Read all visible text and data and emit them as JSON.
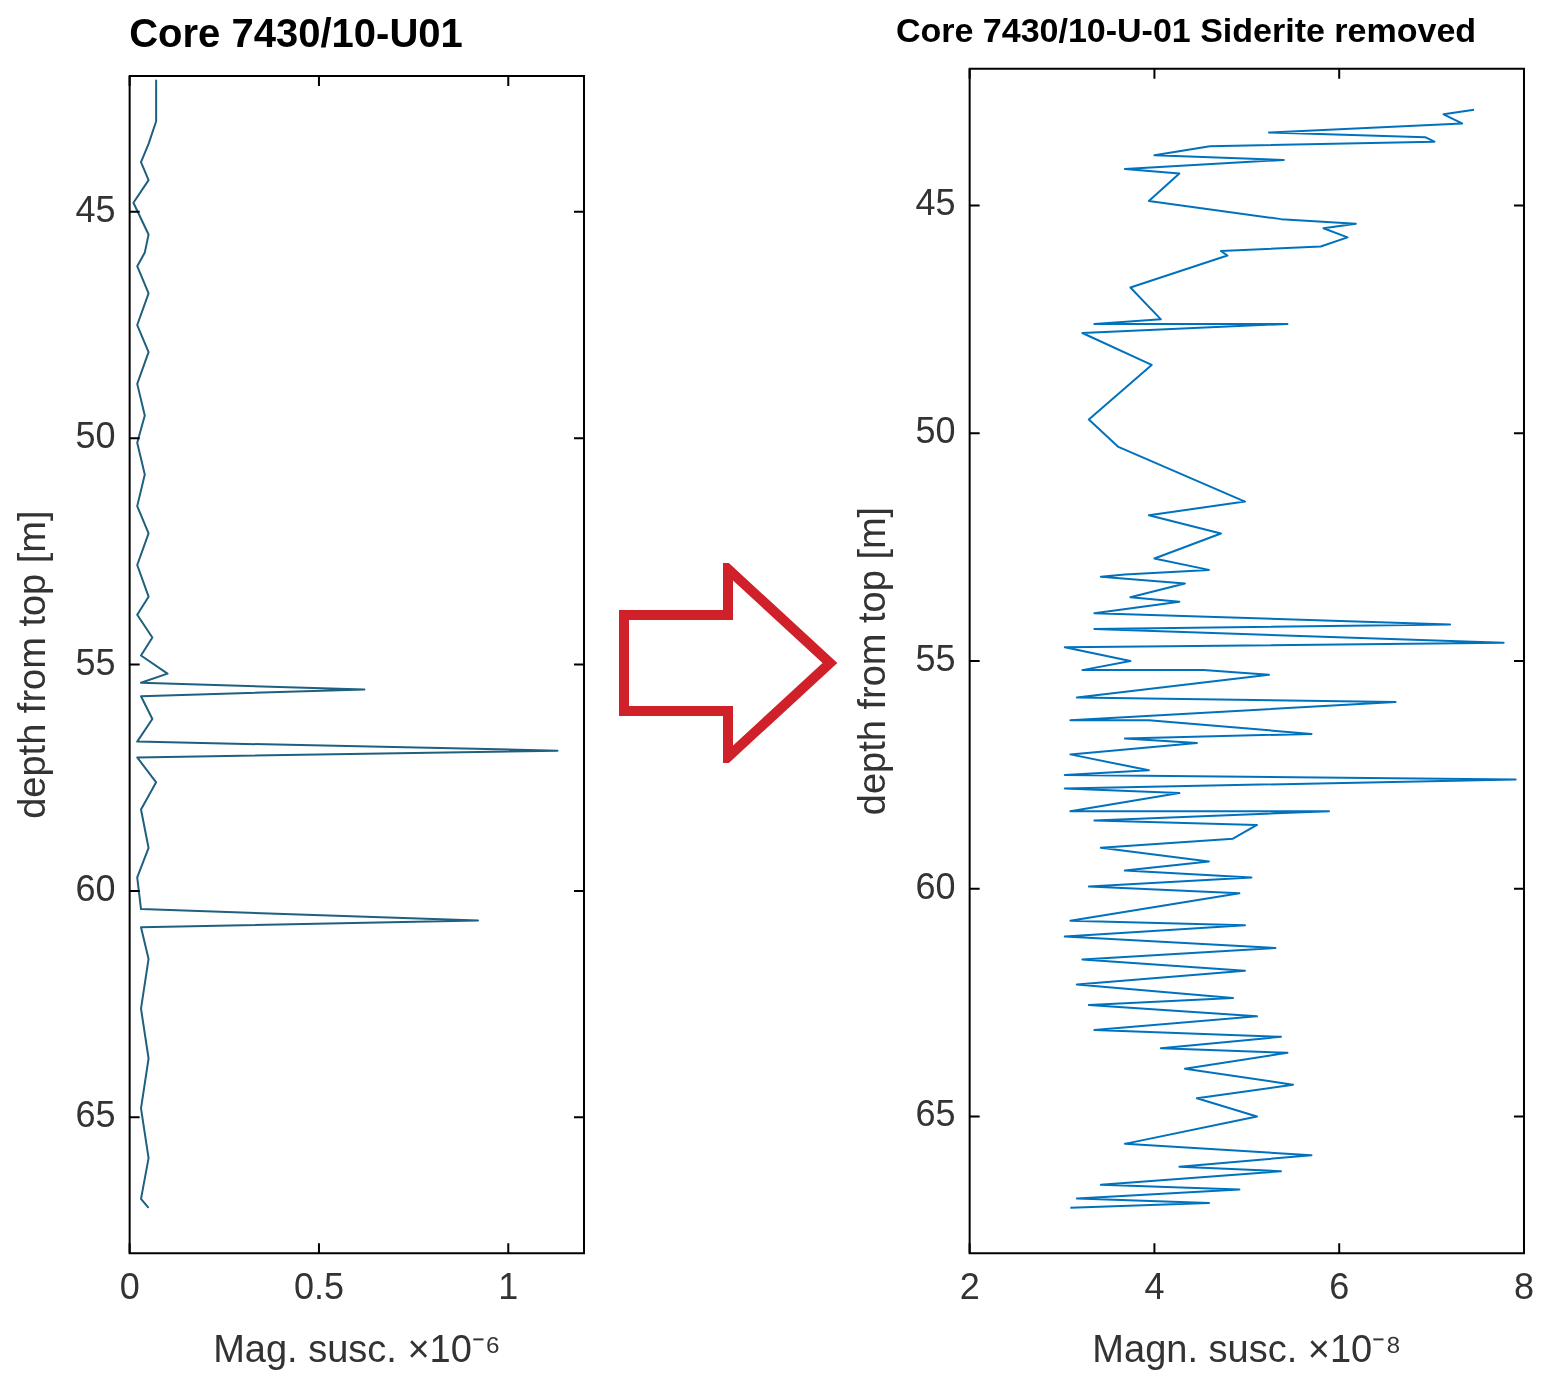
{
  "chart_data": [
    {
      "type": "line",
      "title": "Core 7430/10-U01",
      "xlabel": "Mag. susc. ×10⁻⁶",
      "ylabel": "depth from top [m]",
      "xlim": [
        0,
        1.2
      ],
      "xticks": [
        0,
        0.5,
        1
      ],
      "ylim": [
        68,
        42
      ],
      "yticks": [
        45,
        50,
        55,
        60,
        65
      ],
      "grid": false,
      "legend": false,
      "marker": "none",
      "line_style": "solid",
      "series": [
        {
          "color": "#1f5f7f",
          "x": [
            0.07,
            0.07,
            0.05,
            0.03,
            0.05,
            0.01,
            0.05,
            0.04,
            0.02,
            0.05,
            0.02,
            0.05,
            0.02,
            0.04,
            0.02,
            0.04,
            0.02,
            0.05,
            0.02,
            0.05,
            0.02,
            0.06,
            0.03,
            0.1,
            0.03,
            0.62,
            0.03,
            0.06,
            0.02,
            1.13,
            0.02,
            0.07,
            0.03,
            0.05,
            0.02,
            0.03,
            0.92,
            0.03,
            0.05,
            0.03,
            0.05,
            0.03,
            0.05,
            0.03,
            0.05
          ],
          "values": [
            42.1,
            43.0,
            43.5,
            43.9,
            44.3,
            44.8,
            45.5,
            45.9,
            46.2,
            46.8,
            47.5,
            48.1,
            48.8,
            49.5,
            50.1,
            50.8,
            51.5,
            52.1,
            52.8,
            53.5,
            53.9,
            54.4,
            54.8,
            55.2,
            55.4,
            55.55,
            55.7,
            56.2,
            56.7,
            56.9,
            57.05,
            57.6,
            58.2,
            59.05,
            59.7,
            60.4,
            60.65,
            60.8,
            61.5,
            62.6,
            63.7,
            64.8,
            65.9,
            66.8,
            67.0
          ]
        }
      ]
    },
    {
      "type": "line",
      "title": "Core 7430/10-U-01 Siderite removed",
      "xlabel": "Magn. susc. ×10⁻⁸",
      "ylabel": "depth from top [m]",
      "xlim": [
        2,
        8
      ],
      "xticks": [
        2,
        4,
        6,
        8
      ],
      "ylim": [
        68,
        42
      ],
      "yticks": [
        45,
        50,
        55,
        60,
        65
      ],
      "grid": false,
      "legend": false,
      "marker": "none",
      "line_style": "solid",
      "series": [
        {
          "color": "#0072bd",
          "x": [
            7.46,
            7.13,
            7.33,
            5.24,
            6.93,
            7.03,
            4.6,
            4.0,
            5.4,
            3.68,
            4.27,
            3.94,
            5.37,
            6.18,
            5.83,
            6.09,
            5.8,
            4.72,
            4.79,
            3.74,
            4.07,
            3.35,
            5.44,
            3.22,
            3.97,
            3.29,
            3.61,
            4.98,
            3.94,
            4.72,
            4.0,
            4.59,
            3.68,
            3.42,
            4.33,
            3.74,
            4.27,
            3.35,
            7.2,
            3.35,
            7.78,
            3.03,
            3.74,
            3.22,
            4.53,
            5.24,
            3.16,
            6.61,
            3.09,
            3.94,
            5.7,
            3.68,
            4.46,
            3.09,
            3.94,
            3.03,
            7.91,
            3.03,
            4.27,
            3.09,
            5.89,
            3.35,
            5.11,
            4.85,
            3.42,
            4.59,
            3.68,
            5.05,
            3.29,
            4.92,
            3.09,
            4.98,
            3.03,
            5.31,
            3.22,
            4.98,
            3.16,
            4.85,
            3.29,
            5.11,
            3.35,
            5.37,
            4.07,
            5.44,
            4.33,
            5.5,
            4.46,
            5.11,
            3.68,
            5.7,
            4.27,
            5.37,
            3.42,
            4.92,
            3.16,
            4.59,
            3.09
          ],
          "values": [
            42.9,
            43.0,
            43.2,
            43.4,
            43.5,
            43.6,
            43.7,
            43.9,
            44.0,
            44.2,
            44.3,
            44.9,
            45.3,
            45.4,
            45.5,
            45.7,
            45.9,
            46.0,
            46.1,
            46.8,
            47.5,
            47.6,
            47.6,
            47.8,
            48.5,
            49.7,
            50.3,
            51.5,
            51.8,
            52.2,
            52.75,
            53.0,
            53.1,
            53.15,
            53.3,
            53.6,
            53.7,
            53.95,
            54.2,
            54.3,
            54.6,
            54.7,
            55.0,
            55.2,
            55.2,
            55.3,
            55.8,
            55.9,
            56.3,
            56.3,
            56.6,
            56.7,
            56.8,
            57.05,
            57.4,
            57.5,
            57.6,
            57.8,
            57.9,
            58.3,
            58.3,
            58.5,
            58.6,
            58.9,
            59.1,
            59.4,
            59.6,
            59.75,
            59.95,
            60.1,
            60.7,
            60.8,
            61.05,
            61.3,
            61.55,
            61.8,
            62.1,
            62.4,
            62.55,
            62.8,
            63.1,
            63.25,
            63.5,
            63.6,
            63.95,
            64.3,
            64.6,
            65.0,
            65.6,
            65.85,
            66.1,
            66.2,
            66.5,
            66.6,
            66.8,
            66.9,
            67.0
          ]
        }
      ]
    }
  ]
}
